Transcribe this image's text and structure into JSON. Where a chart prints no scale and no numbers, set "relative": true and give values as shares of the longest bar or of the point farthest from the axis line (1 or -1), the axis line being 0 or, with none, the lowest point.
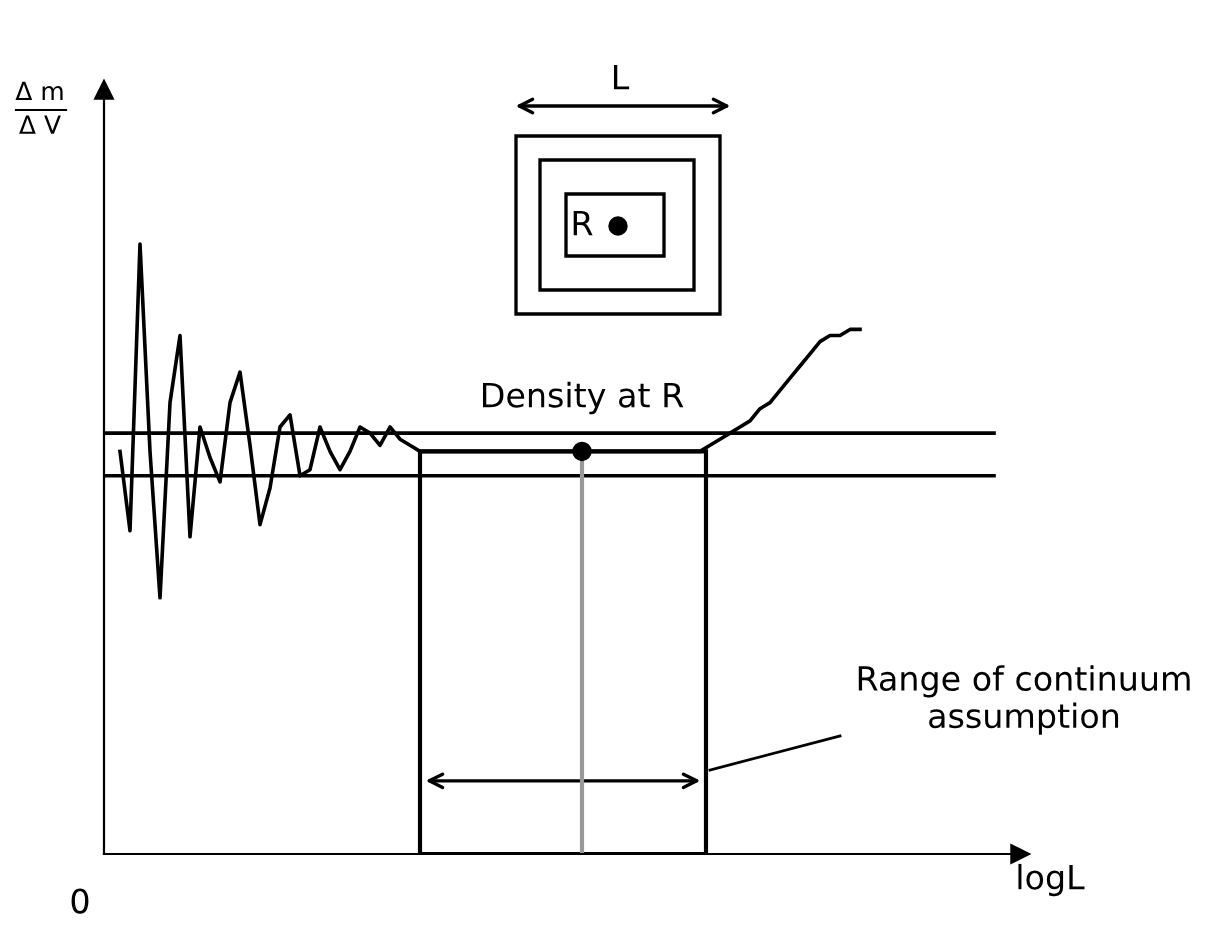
{
  "chart_data": {
    "type": "line",
    "relative": true,
    "xlabel": "logL",
    "ylabel": "Δ m\nΔ V",
    "categories": [
      null,
      null,
      null,
      null,
      null,
      null,
      null,
      null,
      null,
      null,
      null,
      null,
      null,
      null,
      null,
      null,
      null,
      null,
      null,
      null,
      null,
      null,
      null,
      null,
      null,
      null,
      null,
      null,
      null,
      null,
      null,
      null,
      null,
      null,
      null,
      null,
      null,
      null,
      null,
      null,
      null,
      null,
      null,
      null,
      null,
      null,
      null,
      null,
      null,
      null,
      null,
      null,
      null,
      null,
      null,
      null,
      null,
      null,
      null,
      null,
      null,
      null,
      null,
      null,
      null,
      null,
      null,
      null,
      null,
      null,
      null,
      null,
      null,
      null,
      null
    ],
    "series": [
      {
        "color": "#000000",
        "values": [
          0.66,
          0.53,
          1.0,
          0.66,
          0.42,
          0.74,
          0.85,
          0.52,
          0.7,
          0.65,
          0.61,
          0.74,
          0.79,
          0.67,
          0.54,
          0.6,
          0.7,
          0.72,
          0.62,
          0.63,
          0.7,
          0.66,
          0.63,
          0.66,
          0.7,
          0.69,
          0.67,
          0.7,
          0.68,
          0.67,
          0.66,
          0.66,
          0.66,
          0.66,
          0.66,
          0.66,
          0.66,
          0.66,
          0.66,
          0.66,
          0.66,
          0.66,
          0.66,
          0.66,
          0.66,
          0.66,
          0.66,
          0.66,
          0.66,
          0.66,
          0.66,
          0.66,
          0.66,
          0.66,
          0.66,
          0.66,
          0.66,
          0.66,
          0.66,
          0.67,
          0.68,
          0.69,
          0.7,
          0.71,
          0.73,
          0.74,
          0.76,
          0.78,
          0.8,
          0.82,
          0.84,
          0.85,
          0.85,
          0.86,
          0.86
        ]
      }
    ],
    "ref_lines": [
      {
        "axis": "y",
        "value": 0.69,
        "color": "#000000"
      },
      {
        "axis": "y",
        "value": 0.62,
        "color": "#000000"
      }
    ],
    "annotations": [
      "0",
      "L",
      "R",
      "Density at R",
      "Range of continuum\nassumption"
    ],
    "grid": false,
    "legend": false,
    "marker": "none",
    "line_style": "solid"
  }
}
